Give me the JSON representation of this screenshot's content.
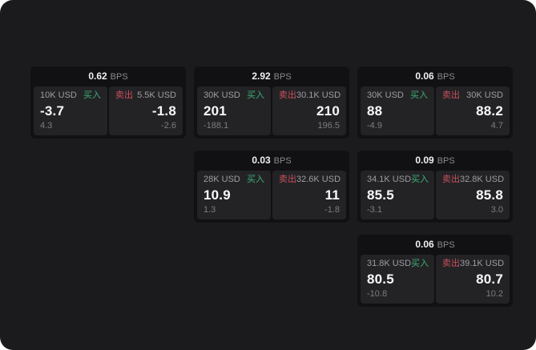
{
  "labels": {
    "bps_unit": "BPS",
    "buy": "买入",
    "sell": "卖出"
  },
  "colors": {
    "buy_green": "#3db073",
    "sell_red": "#c9505a",
    "canvas_bg": "#1b1b1d",
    "card_bg": "#111113",
    "panel_bg": "#232326"
  },
  "cards": [
    {
      "bps": "0.62",
      "buy": {
        "amount": "10K USD",
        "price": "-3.7",
        "delta": "4.3"
      },
      "sell": {
        "amount": "5.5K USD",
        "price": "-1.8",
        "delta": "-2.6"
      }
    },
    {
      "bps": "2.92",
      "buy": {
        "amount": "30K USD",
        "price": "201",
        "delta": "-188.1"
      },
      "sell": {
        "amount": "30.1K USD",
        "price": "210",
        "delta": "196.5"
      }
    },
    {
      "bps": "0.06",
      "buy": {
        "amount": "30K USD",
        "price": "88",
        "delta": "-4.9"
      },
      "sell": {
        "amount": "30K USD",
        "price": "88.2",
        "delta": "4.7"
      }
    },
    {
      "bps": "0.03",
      "buy": {
        "amount": "28K USD",
        "price": "10.9",
        "delta": "1.3"
      },
      "sell": {
        "amount": "32.6K USD",
        "price": "11",
        "delta": "-1.8"
      }
    },
    {
      "bps": "0.09",
      "buy": {
        "amount": "34.1K USD",
        "price": "85.5",
        "delta": "-3.1"
      },
      "sell": {
        "amount": "32.8K USD",
        "price": "85.8",
        "delta": "3.0"
      }
    },
    {
      "bps": "0.06",
      "buy": {
        "amount": "31.8K USD",
        "price": "80.5",
        "delta": "-10.8"
      },
      "sell": {
        "amount": "39.1K USD",
        "price": "80.7",
        "delta": "10.2"
      }
    }
  ]
}
